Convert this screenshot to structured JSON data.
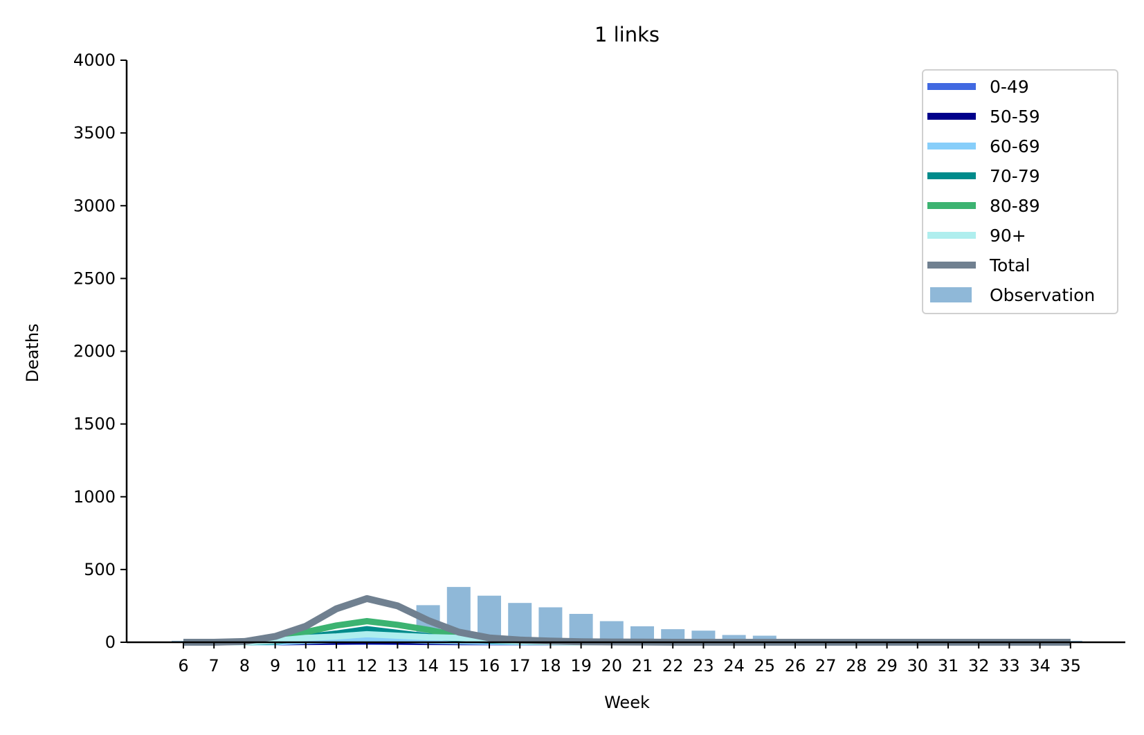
{
  "chart_data": {
    "type": "bar",
    "title": "1 links",
    "xlabel": "Week",
    "ylabel": "Deaths",
    "ylim": [
      0,
      4000
    ],
    "yticks": [
      0,
      500,
      1000,
      1500,
      2000,
      2500,
      3000,
      3500,
      4000
    ],
    "grid": false,
    "legend_position": "top-right",
    "x": [
      6,
      7,
      8,
      9,
      10,
      11,
      12,
      13,
      14,
      15,
      16,
      17,
      18,
      19,
      20,
      21,
      22,
      23,
      24,
      25,
      26,
      27,
      28,
      29,
      30,
      31,
      32,
      33,
      34,
      35
    ],
    "observation": {
      "name": "Observation",
      "color": "#8fb8d8",
      "values": [
        10,
        10,
        10,
        10,
        10,
        10,
        10,
        10,
        255,
        380,
        320,
        270,
        240,
        195,
        145,
        110,
        90,
        80,
        50,
        45,
        10,
        10,
        10,
        10,
        10,
        10,
        10,
        10,
        10,
        10
      ]
    },
    "series": [
      {
        "name": "0-49",
        "color": "#4169e1",
        "values": [
          0,
          0,
          0,
          0,
          2,
          3,
          4,
          3,
          2,
          1,
          1,
          0,
          0,
          0,
          0,
          0,
          0,
          0,
          0,
          0,
          0,
          0,
          0,
          0,
          0,
          0,
          0,
          0,
          0,
          0
        ]
      },
      {
        "name": "50-59",
        "color": "#00008b",
        "values": [
          0,
          0,
          0,
          0,
          3,
          5,
          8,
          6,
          4,
          2,
          1,
          1,
          0,
          0,
          0,
          0,
          0,
          0,
          0,
          0,
          0,
          0,
          0,
          0,
          0,
          0,
          0,
          0,
          0,
          0
        ]
      },
      {
        "name": "60-69",
        "color": "#87cefa",
        "values": [
          0,
          0,
          0,
          0,
          8,
          15,
          22,
          17,
          10,
          6,
          3,
          1,
          1,
          0,
          0,
          0,
          0,
          0,
          0,
          0,
          0,
          0,
          0,
          0,
          0,
          0,
          0,
          0,
          0,
          0
        ]
      },
      {
        "name": "70-79",
        "color": "#008b8b",
        "values": [
          0,
          0,
          0,
          5,
          35,
          60,
          90,
          65,
          40,
          25,
          12,
          5,
          2,
          1,
          0,
          0,
          0,
          0,
          0,
          0,
          0,
          0,
          0,
          0,
          0,
          0,
          0,
          0,
          0,
          0
        ]
      },
      {
        "name": "80-89",
        "color": "#3cb371",
        "values": [
          0,
          0,
          0,
          15,
          70,
          115,
          145,
          120,
          85,
          45,
          20,
          8,
          3,
          1,
          0,
          0,
          0,
          0,
          0,
          0,
          0,
          0,
          0,
          0,
          0,
          0,
          0,
          0,
          0,
          0
        ]
      },
      {
        "name": "90+",
        "color": "#afeeee",
        "values": [
          0,
          0,
          0,
          10,
          30,
          40,
          55,
          45,
          35,
          30,
          15,
          6,
          2,
          1,
          0,
          0,
          0,
          0,
          0,
          0,
          0,
          0,
          0,
          0,
          0,
          0,
          0,
          0,
          0,
          0
        ]
      },
      {
        "name": "Total",
        "color": "#708090",
        "values": [
          0,
          0,
          5,
          40,
          110,
          230,
          300,
          250,
          150,
          70,
          30,
          15,
          8,
          4,
          2,
          1,
          0,
          0,
          0,
          0,
          0,
          0,
          0,
          0,
          0,
          0,
          0,
          0,
          0,
          0
        ]
      }
    ]
  }
}
